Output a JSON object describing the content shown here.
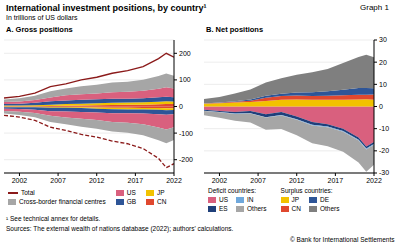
{
  "title": "International investment positions, by country¹",
  "subtitle": "In trillions of US dollars",
  "label": "Graph 1",
  "footnote": "¹ See technical annex for details.",
  "source": "Sources: The external wealth of nations database (2022); authors' calculations.",
  "credit": "© Bank for International Settlements",
  "chart_data": [
    {
      "type": "area",
      "title": "A. Gross positions",
      "stacked": true,
      "grid": true,
      "x": [
        2000,
        2002,
        2004,
        2006,
        2008,
        2010,
        2012,
        2014,
        2016,
        2018,
        2020,
        2021,
        2022
      ],
      "xlim": [
        2000,
        2022
      ],
      "xticks": [
        2002,
        2007,
        2012,
        2017,
        2022
      ],
      "ylim": [
        -250,
        250
      ],
      "yticks": [
        -200,
        -100,
        0,
        100,
        200
      ],
      "series": [
        {
          "name": "Total",
          "type": "line",
          "color": "#8b1a1a",
          "assets": [
            32,
            38,
            50,
            75,
            85,
            100,
            110,
            125,
            135,
            150,
            180,
            200,
            185
          ],
          "liabilities": [
            -33,
            -40,
            -52,
            -78,
            -90,
            -105,
            -115,
            -130,
            -140,
            -158,
            -195,
            -230,
            -215
          ]
        },
        {
          "name": "Cross-border financial centres",
          "type": "area",
          "color": "#a6a6a6",
          "assets": [
            10,
            12,
            16,
            24,
            26,
            30,
            33,
            36,
            38,
            42,
            48,
            52,
            48
          ],
          "liabilities": [
            -10,
            -12,
            -16,
            -24,
            -26,
            -30,
            -33,
            -36,
            -38,
            -42,
            -48,
            -52,
            -48
          ]
        },
        {
          "name": "US",
          "type": "area",
          "color": "#d9607e",
          "assets": [
            7,
            8,
            10,
            14,
            19,
            21,
            22,
            25,
            26,
            28,
            32,
            35,
            33
          ],
          "liabilities": [
            -8,
            -10,
            -12,
            -17,
            -22,
            -25,
            -28,
            -33,
            -36,
            -40,
            -50,
            -55,
            -49
          ]
        },
        {
          "name": "GB",
          "type": "area",
          "color": "#2e5597",
          "assets": [
            6,
            7,
            9,
            13,
            14,
            15,
            15,
            15,
            14,
            15,
            17,
            17,
            16
          ],
          "liabilities": [
            -6,
            -7,
            -9,
            -13,
            -14,
            -15,
            -15,
            -15,
            -14,
            -15,
            -17,
            -17,
            -16
          ]
        },
        {
          "name": "JP",
          "type": "area",
          "color": "#f2c200",
          "assets": [
            3,
            3,
            4,
            5,
            6,
            6,
            7,
            8,
            9,
            9,
            10,
            11,
            10
          ],
          "liabilities": [
            -2,
            -2,
            -2,
            -3,
            -3,
            -3,
            -4,
            -5,
            -6,
            -6,
            -6,
            -7,
            -6
          ]
        },
        {
          "name": "CN",
          "type": "area",
          "color": "#e0482f",
          "assets": [
            0.5,
            0.7,
            1,
            1.5,
            3,
            4,
            5,
            6,
            6.5,
            7,
            8,
            9,
            9
          ],
          "liabilities": [
            -0.5,
            -0.7,
            -1,
            -1.5,
            -2,
            -3,
            -4,
            -5,
            -5,
            -5.5,
            -6,
            -7,
            -7
          ]
        }
      ]
    },
    {
      "type": "area",
      "title": "B. Net positions",
      "stacked": true,
      "grid": true,
      "x": [
        2000,
        2002,
        2004,
        2006,
        2008,
        2010,
        2012,
        2014,
        2016,
        2018,
        2020,
        2021,
        2022
      ],
      "xlim": [
        2000,
        2022
      ],
      "xticks": [
        2002,
        2007,
        2012,
        2017,
        2022
      ],
      "ylim": [
        -30,
        30
      ],
      "yticks": [
        -30,
        -20,
        -10,
        0,
        10,
        20,
        30
      ],
      "groups": [
        {
          "name": "Deficit countries:",
          "series": [
            {
              "name": "US",
              "color": "#d9607e",
              "values": [
                -1.5,
                -2,
                -2.5,
                -2,
                -3.5,
                -2.5,
                -4.5,
                -7,
                -8,
                -10,
                -14,
                -18,
                -16
              ]
            },
            {
              "name": "ES",
              "color": "#1f3f7a",
              "values": [
                -0.4,
                -0.5,
                -0.7,
                -1,
                -1.3,
                -1.3,
                -1.2,
                -1.2,
                -1,
                -1,
                -1,
                -1,
                -0.9
              ]
            },
            {
              "name": "IN",
              "color": "#6fa8dc",
              "values": [
                -0.1,
                -0.1,
                -0.2,
                -0.2,
                -0.2,
                -0.3,
                -0.3,
                -0.4,
                -0.4,
                -0.4,
                -0.3,
                -0.4,
                -0.4
              ]
            },
            {
              "name": "Others",
              "color": "#a6a6a6",
              "values": [
                -2,
                -2.5,
                -3,
                -4,
                -5.5,
                -6,
                -7,
                -8,
                -8.5,
                -9,
                -10,
                -10,
                -9
              ]
            }
          ]
        },
        {
          "name": "Surplus countries:",
          "series": [
            {
              "name": "JP",
              "color": "#f2c200",
              "values": [
                1.2,
                1.5,
                1.8,
                2,
                2.5,
                3,
                3.2,
                3,
                3,
                3.1,
                3.2,
                3.3,
                3.1
              ]
            },
            {
              "name": "CN",
              "color": "#e0482f",
              "values": [
                0.2,
                0.2,
                0.3,
                0.6,
                1.5,
                1.7,
                1.8,
                1.7,
                1.9,
                2,
                2.1,
                2,
                2.3
              ]
            },
            {
              "name": "DE",
              "color": "#2e5597",
              "values": [
                0,
                0.1,
                0.3,
                0.6,
                0.8,
                1,
                1.3,
                1.7,
                2,
                2.5,
                3,
                3,
                2.8
              ]
            },
            {
              "name": "Others",
              "color": "#7f7f7f",
              "values": [
                2,
                2.5,
                3.5,
                4.5,
                6,
                7,
                8,
                9,
                10,
                12,
                14,
                15,
                14
              ]
            }
          ]
        }
      ]
    }
  ]
}
